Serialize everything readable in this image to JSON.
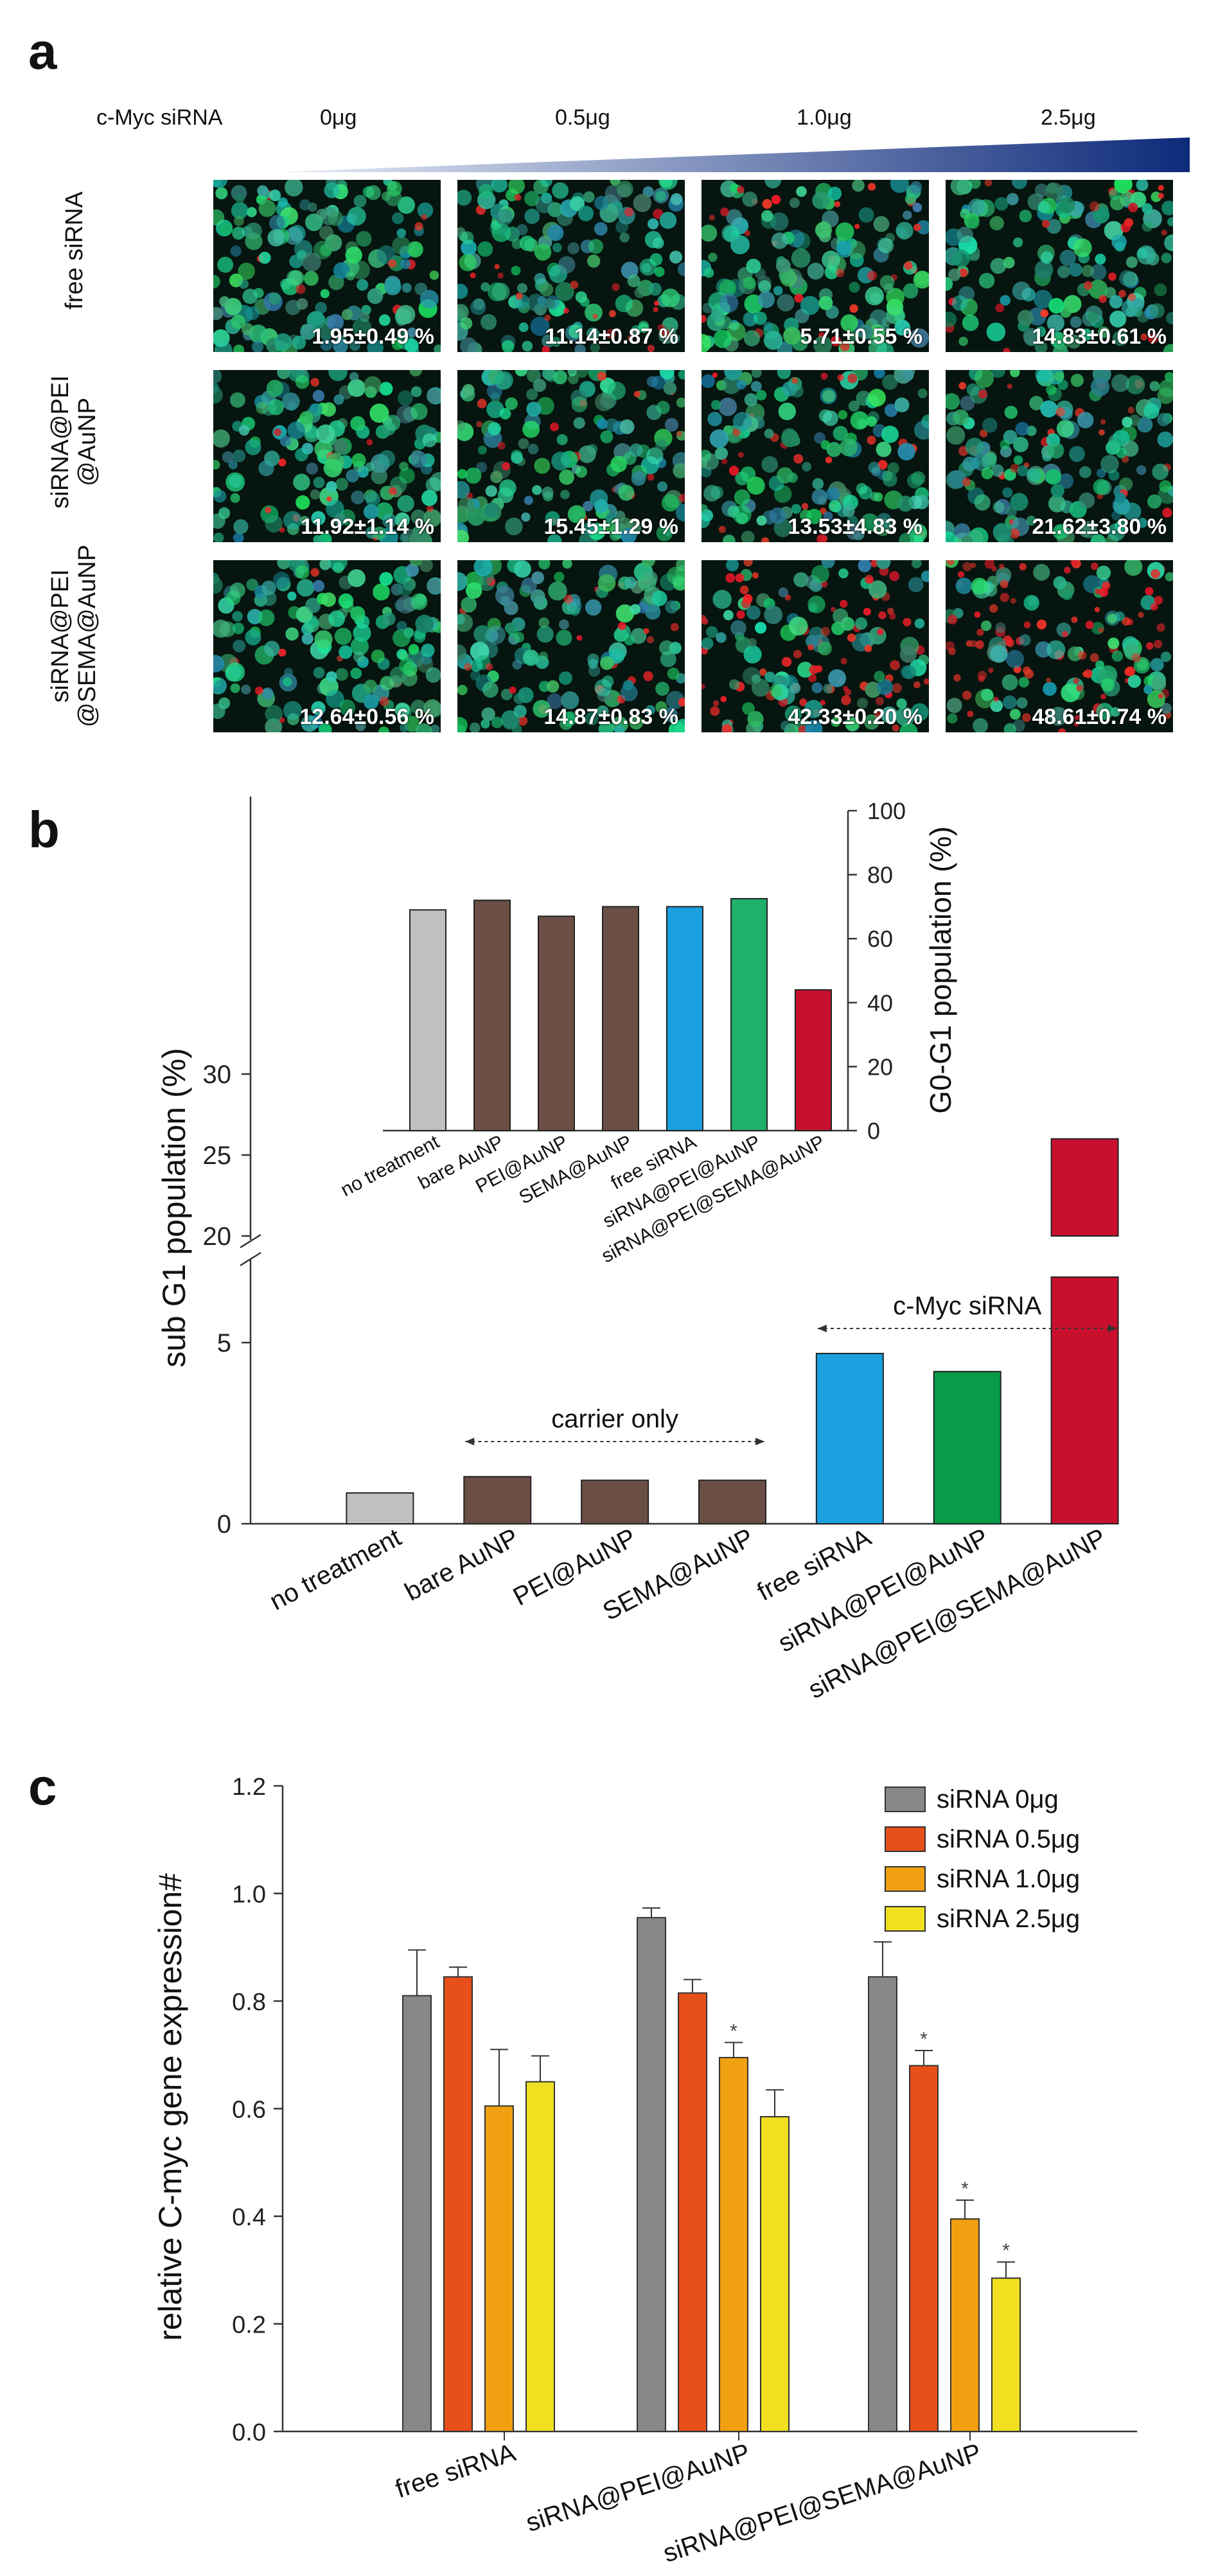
{
  "panel_a": {
    "letter": "a",
    "header_label": "c-Myc siRNA",
    "doses": [
      "0μg",
      "0.5μg",
      "1.0μg",
      "2.5μg"
    ],
    "row_labels": [
      [
        "free siRNA"
      ],
      [
        "siRNA@PEI",
        "@AuNP"
      ],
      [
        "siRNA@PEI",
        "@SEMA@AuNP"
      ]
    ],
    "percentages": [
      [
        "1.95±0.49 %",
        "11.14±0.87 %",
        "5.71±0.55 %",
        "14.83±0.61 %"
      ],
      [
        "11.92±1.14 %",
        "15.45±1.29 %",
        "13.53±4.83 %",
        "21.62±3.80 %"
      ],
      [
        "12.64±0.56 %",
        "14.87±0.83 %",
        "42.33±0.20 %",
        "48.61±0.74 %"
      ]
    ],
    "gradient_colors": [
      "#e8eef8",
      "#0d2a7a"
    ]
  },
  "chart_data": [
    {
      "panel": "b",
      "letter": "b",
      "type": "bar",
      "ylabel": "sub G1 population (%)",
      "axis_break": true,
      "lower_ticks": [
        "0",
        "5"
      ],
      "upper_ticks": [
        "20",
        "25",
        "30"
      ],
      "categories": [
        "no treatment",
        "bare AuNP",
        "PEI@AuNP",
        "SEMA@AuNP",
        "free siRNA",
        "siRNA@PEI@AuNP",
        "siRNA@PEI@SEMA@AuNP"
      ],
      "values": [
        0.85,
        1.3,
        1.2,
        1.2,
        4.7,
        4.2,
        26.0
      ],
      "colors": [
        "#c0c0c0",
        "#6b4f44",
        "#6b4f44",
        "#6b4f44",
        "#1aa0e0",
        "#0a9a48",
        "#c8102e"
      ],
      "annotations": [
        {
          "text": "carrier only",
          "from": 1,
          "to": 3
        },
        {
          "text": "c-Myc siRNA",
          "from": 4,
          "to": 6
        }
      ],
      "inset": {
        "type": "bar",
        "ylabel": "G0-G1 population (%)",
        "ylim": [
          0,
          100
        ],
        "yticks": [
          "0",
          "20",
          "40",
          "60",
          "80",
          "100"
        ],
        "categories": [
          "no treatment",
          "bare AuNP",
          "PEI@AuNP",
          "SEMA@AuNP",
          "free siRNA",
          "siRNA@PEI@AuNP",
          "siRNA@PEI@SEMA@AuNP"
        ],
        "values": [
          69,
          72,
          67,
          70,
          70,
          72.5,
          44
        ],
        "colors": [
          "#c0c0c0",
          "#6b4f44",
          "#6b4f44",
          "#6b4f44",
          "#1aa0e0",
          "#1fb06a",
          "#c8102e"
        ]
      }
    },
    {
      "panel": "c",
      "letter": "c",
      "type": "bar",
      "ylabel": "relative C-myc gene expression#",
      "ylim": [
        0,
        1.2
      ],
      "yticks": [
        "0.0",
        "0.2",
        "0.4",
        "0.6",
        "0.8",
        "1.0",
        "1.2"
      ],
      "categories": [
        "free siRNA",
        "siRNA@PEI@AuNP",
        "siRNA@PEI@SEMA@AuNP"
      ],
      "series": [
        {
          "name": "siRNA 0μg",
          "color": "#888888",
          "values": [
            0.81,
            0.955,
            0.845
          ],
          "errors": [
            0.085,
            0.018,
            0.065
          ],
          "sig": [
            "",
            "",
            ""
          ]
        },
        {
          "name": "siRNA 0.5μg",
          "color": "#e8501a",
          "values": [
            0.845,
            0.815,
            0.68
          ],
          "errors": [
            0.018,
            0.025,
            0.028
          ],
          "sig": [
            "",
            "",
            "*"
          ]
        },
        {
          "name": "siRNA 1.0μg",
          "color": "#f0a010",
          "values": [
            0.605,
            0.695,
            0.395
          ],
          "errors": [
            0.105,
            0.028,
            0.035
          ],
          "sig": [
            "",
            "*",
            "*"
          ]
        },
        {
          "name": "siRNA 2.5μg",
          "color": "#f0e020",
          "values": [
            0.65,
            0.585,
            0.285
          ],
          "errors": [
            0.048,
            0.05,
            0.03
          ],
          "sig": [
            "",
            "",
            "*"
          ]
        }
      ]
    }
  ]
}
